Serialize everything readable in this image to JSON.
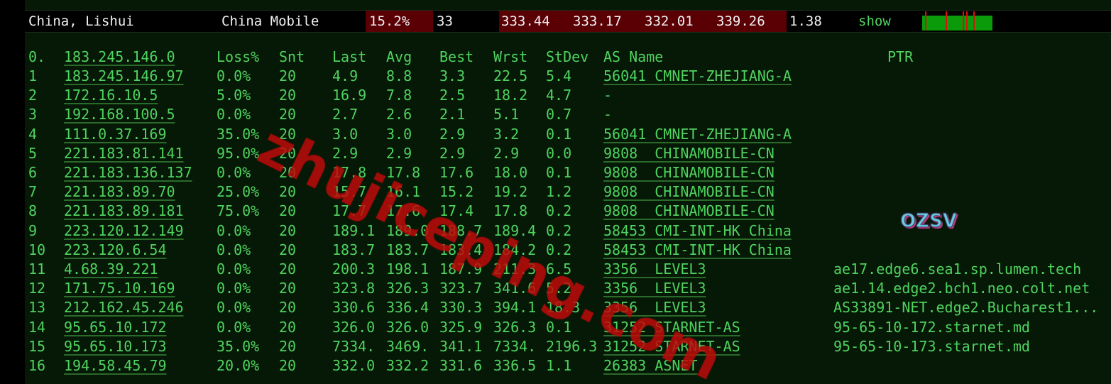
{
  "summary": {
    "location": "China, Lishui",
    "provider": "China Mobile",
    "loss": "15.2%",
    "sent": "33",
    "last": "333.44",
    "avg": "333.17",
    "best": "332.01",
    "worst": "339.26",
    "stdev": "1.38",
    "show_label": "show",
    "loss_bar_color": "#0a9a0a",
    "loss_marker_color": "#e01010"
  },
  "header": {
    "index": "0.",
    "host": "183.245.146.0",
    "loss": "Loss%",
    "snt": "Snt",
    "last": "Last",
    "avg": "Avg",
    "best": "Best",
    "wrst": "Wrst",
    "stdev": "StDev",
    "asname": "AS Name",
    "ptr": "PTR"
  },
  "hops": [
    {
      "n": "1",
      "host": "183.245.146.97",
      "loss": "0.0%",
      "snt": "20",
      "last": "4.9",
      "avg": "8.8",
      "best": "3.3",
      "wrst": "22.5",
      "stdev": "5.4",
      "as": "56041 CMNET-ZHEJIANG-A",
      "ptr": ""
    },
    {
      "n": "2",
      "host": "172.16.10.5",
      "loss": "5.0%",
      "snt": "20",
      "last": "16.9",
      "avg": "7.8",
      "best": "2.5",
      "wrst": "18.2",
      "stdev": "4.7",
      "as": "-",
      "ptr": ""
    },
    {
      "n": "3",
      "host": "192.168.100.5",
      "loss": "0.0%",
      "snt": "20",
      "last": "2.7",
      "avg": "2.6",
      "best": "2.1",
      "wrst": "5.1",
      "stdev": "0.7",
      "as": "-",
      "ptr": ""
    },
    {
      "n": "4",
      "host": "111.0.37.169",
      "loss": "35.0%",
      "snt": "20",
      "last": "3.0",
      "avg": "3.0",
      "best": "2.9",
      "wrst": "3.2",
      "stdev": "0.1",
      "as": "56041 CMNET-ZHEJIANG-A",
      "ptr": ""
    },
    {
      "n": "5",
      "host": "221.183.81.141",
      "loss": "95.0%",
      "snt": "20",
      "last": "2.9",
      "avg": "2.9",
      "best": "2.9",
      "wrst": "2.9",
      "stdev": "0.0",
      "as": "9808  CHINAMOBILE-CN",
      "ptr": ""
    },
    {
      "n": "6",
      "host": "221.183.136.137",
      "loss": "0.0%",
      "snt": "20",
      "last": "17.8",
      "avg": "17.8",
      "best": "17.6",
      "wrst": "18.0",
      "stdev": "0.1",
      "as": "9808  CHINAMOBILE-CN",
      "ptr": ""
    },
    {
      "n": "7",
      "host": "221.183.89.70",
      "loss": "25.0%",
      "snt": "20",
      "last": "15.7",
      "avg": "16.1",
      "best": "15.2",
      "wrst": "19.2",
      "stdev": "1.2",
      "as": "9808  CHINAMOBILE-CN",
      "ptr": ""
    },
    {
      "n": "8",
      "host": "221.183.89.181",
      "loss": "75.0%",
      "snt": "20",
      "last": "17.7",
      "avg": "17.6",
      "best": "17.4",
      "wrst": "17.8",
      "stdev": "0.2",
      "as": "9808  CHINAMOBILE-CN",
      "ptr": ""
    },
    {
      "n": "9",
      "host": "223.120.12.149",
      "loss": "0.0%",
      "snt": "20",
      "last": "189.1",
      "avg": "189.0",
      "best": "188.7",
      "wrst": "189.4",
      "stdev": "0.2",
      "as": "58453 CMI-INT-HK China",
      "ptr": ""
    },
    {
      "n": "10",
      "host": "223.120.6.54",
      "loss": "0.0%",
      "snt": "20",
      "last": "183.7",
      "avg": "183.7",
      "best": "183.4",
      "wrst": "184.2",
      "stdev": "0.2",
      "as": "58453 CMI-INT-HK China",
      "ptr": ""
    },
    {
      "n": "11",
      "host": "4.68.39.221",
      "loss": "0.0%",
      "snt": "20",
      "last": "200.3",
      "avg": "198.1",
      "best": "187.9",
      "wrst": "211.3",
      "stdev": "6.5",
      "as": "3356  LEVEL3",
      "ptr": "ae17.edge6.sea1.sp.lumen.tech"
    },
    {
      "n": "12",
      "host": "171.75.10.169",
      "loss": "0.0%",
      "snt": "20",
      "last": "323.8",
      "avg": "326.3",
      "best": "323.7",
      "wrst": "341.6",
      "stdev": "5.2",
      "as": "3356  LEVEL3",
      "ptr": "ae1.14.edge2.bch1.neo.colt.net"
    },
    {
      "n": "13",
      "host": "212.162.45.246",
      "loss": "0.0%",
      "snt": "20",
      "last": "330.6",
      "avg": "336.4",
      "best": "330.3",
      "wrst": "394.1",
      "stdev": "18.3",
      "as": "3356  LEVEL3",
      "ptr": "AS33891-NET.edge2.Bucharest1..."
    },
    {
      "n": "14",
      "host": "95.65.10.172",
      "loss": "0.0%",
      "snt": "20",
      "last": "326.0",
      "avg": "326.0",
      "best": "325.9",
      "wrst": "326.3",
      "stdev": "0.1",
      "as": "31252 STARNET-AS",
      "ptr": "95-65-10-172.starnet.md"
    },
    {
      "n": "15",
      "host": "95.65.10.173",
      "loss": "35.0%",
      "snt": "20",
      "last": "7334.",
      "avg": "3469.",
      "best": "341.1",
      "wrst": "7334.",
      "stdev": "2196.3",
      "as": "31252 STARNET-AS",
      "ptr": "95-65-10-173.starnet.md"
    },
    {
      "n": "16",
      "host": "194.58.45.79",
      "loss": "20.0%",
      "snt": "20",
      "last": "332.0",
      "avg": "332.2",
      "best": "331.6",
      "wrst": "336.5",
      "stdev": "1.1",
      "as": "26383 ASNET",
      "ptr": ""
    }
  ],
  "watermark": "zhujiceping.com",
  "logo": "OZSV"
}
